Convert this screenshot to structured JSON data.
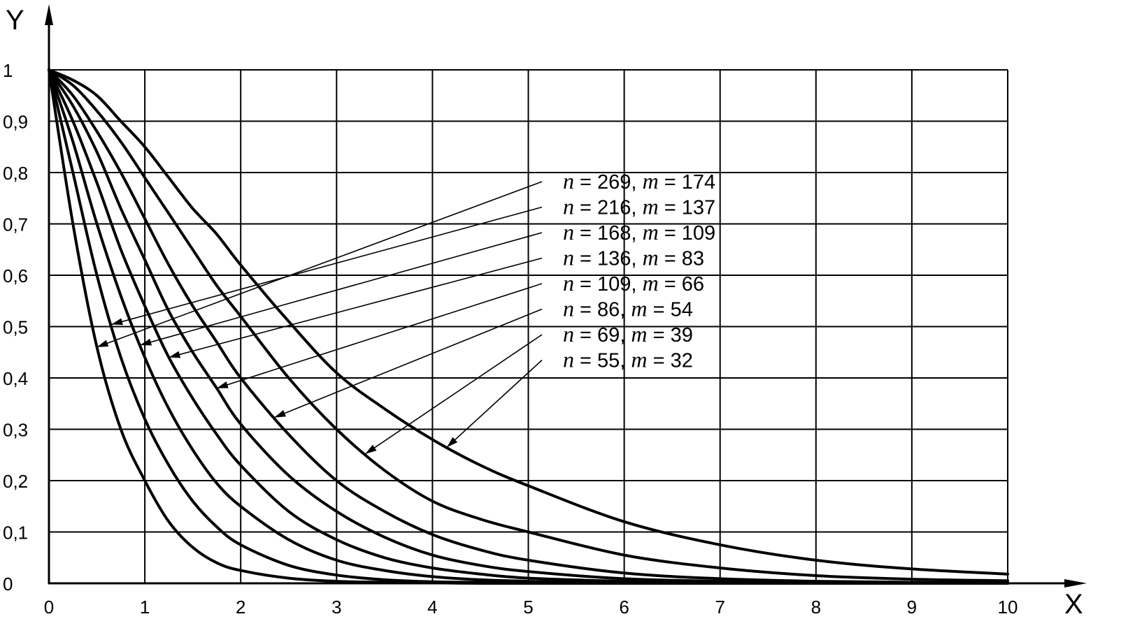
{
  "chart_data": {
    "type": "line",
    "xlabel": "X",
    "ylabel": "Y",
    "xlim": [
      0,
      10
    ],
    "ylim": [
      0,
      1
    ],
    "grid": true,
    "x_ticks": [
      "0",
      "1",
      "2",
      "3",
      "4",
      "5",
      "6",
      "7",
      "8",
      "9",
      "10"
    ],
    "y_ticks": [
      "0",
      "0,1",
      "0,2",
      "0,3",
      "0,4",
      "0,5",
      "0,6",
      "0,7",
      "0,8",
      "0,9",
      "1"
    ],
    "x": [
      0,
      0.25,
      0.5,
      0.75,
      1,
      1.25,
      1.5,
      1.75,
      2,
      2.5,
      3,
      3.5,
      4,
      4.5,
      5,
      6,
      7,
      8,
      9,
      10
    ],
    "series": [
      {
        "label": {
          "n_sym": "n",
          "n_val": "269",
          "m_sym": "m",
          "m_val": "174"
        },
        "values": [
          1,
          0.7,
          0.46,
          0.3,
          0.2,
          0.12,
          0.07,
          0.04,
          0.025,
          0.01,
          0.004,
          0.002,
          0.001,
          0,
          0,
          0,
          0,
          0,
          0,
          0
        ]
      },
      {
        "label": {
          "n_sym": "n",
          "n_val": "216",
          "m_sym": "m",
          "m_val": "137"
        },
        "values": [
          1,
          0.8,
          0.6,
          0.44,
          0.32,
          0.23,
          0.16,
          0.11,
          0.075,
          0.035,
          0.016,
          0.007,
          0.003,
          0.002,
          0.001,
          0,
          0,
          0,
          0,
          0
        ]
      },
      {
        "label": {
          "n_sym": "n",
          "n_val": "168",
          "m_sym": "m",
          "m_val": "109"
        },
        "values": [
          1,
          0.86,
          0.7,
          0.56,
          0.44,
          0.34,
          0.26,
          0.195,
          0.15,
          0.085,
          0.045,
          0.025,
          0.013,
          0.007,
          0.004,
          0.001,
          0,
          0,
          0,
          0
        ]
      },
      {
        "label": {
          "n_sym": "n",
          "n_val": "136",
          "m_sym": "m",
          "m_val": "83"
        },
        "values": [
          1,
          0.9,
          0.78,
          0.65,
          0.54,
          0.44,
          0.36,
          0.29,
          0.23,
          0.14,
          0.085,
          0.05,
          0.03,
          0.018,
          0.01,
          0.004,
          0.001,
          0,
          0,
          0
        ]
      },
      {
        "label": {
          "n_sym": "n",
          "n_val": "109",
          "m_sym": "m",
          "m_val": "66"
        },
        "values": [
          1,
          0.93,
          0.84,
          0.73,
          0.63,
          0.53,
          0.45,
          0.38,
          0.31,
          0.21,
          0.14,
          0.09,
          0.055,
          0.035,
          0.023,
          0.009,
          0.004,
          0.001,
          0,
          0
        ]
      },
      {
        "label": {
          "n_sym": "n",
          "n_val": "86",
          "m_sym": "m",
          "m_val": "54"
        },
        "values": [
          1,
          0.95,
          0.88,
          0.8,
          0.71,
          0.62,
          0.54,
          0.47,
          0.4,
          0.29,
          0.2,
          0.14,
          0.095,
          0.065,
          0.045,
          0.02,
          0.009,
          0.004,
          0.002,
          0.001
        ]
      },
      {
        "label": {
          "n_sym": "n",
          "n_val": "69",
          "m_sym": "m",
          "m_val": "39"
        },
        "values": [
          1,
          0.97,
          0.92,
          0.86,
          0.79,
          0.72,
          0.65,
          0.58,
          0.52,
          0.4,
          0.3,
          0.22,
          0.16,
          0.125,
          0.1,
          0.055,
          0.03,
          0.015,
          0.008,
          0.005
        ]
      },
      {
        "label": {
          "n_sym": "n",
          "n_val": "55",
          "m_sym": "m",
          "m_val": "32"
        },
        "values": [
          1,
          0.98,
          0.95,
          0.9,
          0.85,
          0.79,
          0.73,
          0.68,
          0.62,
          0.51,
          0.41,
          0.34,
          0.28,
          0.23,
          0.19,
          0.12,
          0.075,
          0.045,
          0.028,
          0.018
        ]
      }
    ],
    "annotations": [
      {
        "series": 0,
        "x": 0.5
      },
      {
        "series": 1,
        "x": 0.65
      },
      {
        "series": 2,
        "x": 0.95
      },
      {
        "series": 3,
        "x": 1.25
      },
      {
        "series": 4,
        "x": 1.75
      },
      {
        "series": 5,
        "x": 2.35
      },
      {
        "series": 6,
        "x": 3.3
      },
      {
        "series": 7,
        "x": 4.15
      }
    ]
  }
}
